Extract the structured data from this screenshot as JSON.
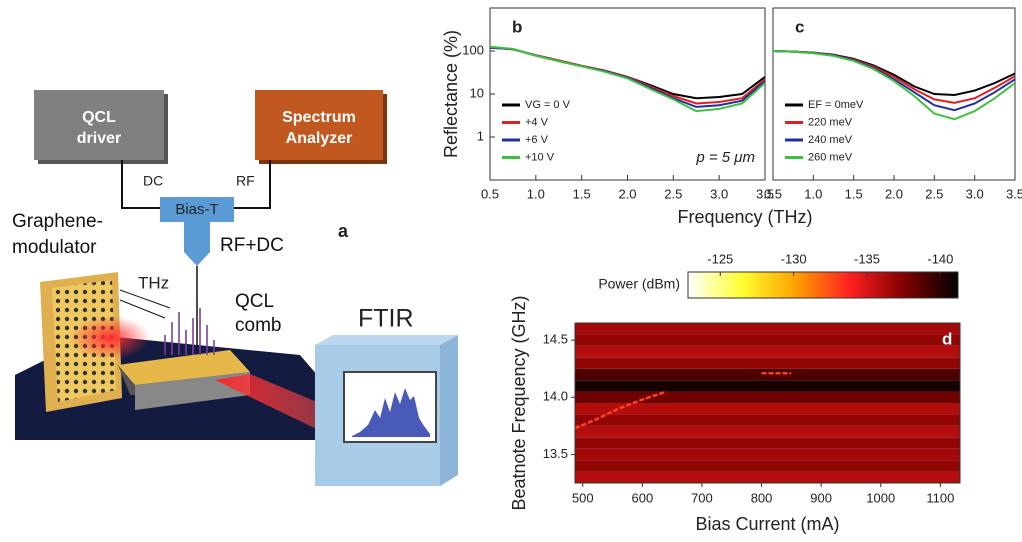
{
  "diagram": {
    "label": "a",
    "qcl_driver": [
      "QCL",
      "driver"
    ],
    "spectrum_analyzer": [
      "Spectrum",
      "Analyzer"
    ],
    "dc": "DC",
    "rf": "RF",
    "bias_t": "Bias-T",
    "rf_dc": "RF+DC",
    "graphene_modulator": [
      "Graphene-",
      "modulator"
    ],
    "thz": "THz",
    "qcl_comb": [
      "QCL",
      "comb"
    ],
    "ftir": "FTIR"
  },
  "chart_data": [
    {
      "type": "line",
      "panel_label": "b",
      "ylabel": "Reflectance (%)",
      "xlabel": "Frequency (THz)",
      "log_y": true,
      "xlim": [
        0.5,
        3.5
      ],
      "ylim": [
        0.1,
        1000
      ],
      "xticks": [
        0.5,
        {
          "value": 1,
          "label": "1.0"
        },
        1.5,
        {
          "value": 2,
          "label": "2.0"
        },
        2.5,
        {
          "value": 3,
          "label": "3.0"
        },
        3.5
      ],
      "yticks": [
        1,
        10,
        100
      ],
      "legend": "lower left",
      "annotation": "p = 5 μm",
      "annotation_color": "#7030a0",
      "x": [
        0.5,
        0.75,
        1.0,
        1.25,
        1.5,
        1.75,
        2.0,
        2.25,
        2.5,
        2.75,
        3.0,
        3.25,
        3.5
      ],
      "series": [
        {
          "name": "VG = 0 V",
          "color": "#000000",
          "values": [
            120,
            110,
            80,
            60,
            45,
            35,
            25,
            16,
            10,
            8,
            8.5,
            10,
            25
          ]
        },
        {
          "name": "+4 V",
          "color": "#e02020",
          "values": [
            120,
            110,
            80,
            60,
            45,
            35,
            25,
            15,
            9,
            6,
            6.5,
            8,
            22
          ]
        },
        {
          "name": "+6 V",
          "color": "#2030a0",
          "values": [
            120,
            110,
            78,
            58,
            44,
            34,
            24,
            14,
            8,
            5,
            5.5,
            7,
            20
          ]
        },
        {
          "name": "+10 V",
          "color": "#40c040",
          "values": [
            125,
            112,
            78,
            58,
            44,
            33,
            23,
            13,
            7.5,
            4,
            4.5,
            6,
            18
          ]
        }
      ]
    },
    {
      "type": "line",
      "panel_label": "c",
      "log_y": true,
      "xlim": [
        0.5,
        3.5
      ],
      "ylim": [
        0.1,
        1000
      ],
      "xticks": [
        0.5,
        {
          "value": 1,
          "label": "1.0"
        },
        1.5,
        {
          "value": 2,
          "label": "2.0"
        },
        2.5,
        {
          "value": 3,
          "label": "3.0"
        },
        3.5
      ],
      "legend": "lower left",
      "x": [
        0.5,
        0.75,
        1.0,
        1.25,
        1.5,
        1.75,
        2.0,
        2.25,
        2.5,
        2.75,
        3.0,
        3.25,
        3.5
      ],
      "series": [
        {
          "name": "EF = 0meV",
          "color": "#000000",
          "values": [
            100,
            97,
            92,
            82,
            66,
            46,
            28,
            15,
            10,
            9.5,
            12,
            18,
            30
          ]
        },
        {
          "name": "220 meV",
          "color": "#e02020",
          "values": [
            100,
            97,
            91,
            80,
            63,
            43,
            25,
            13,
            7.5,
            6.2,
            8,
            14,
            26
          ]
        },
        {
          "name": "240 meV",
          "color": "#2030a0",
          "values": [
            100,
            97,
            90,
            79,
            61,
            40,
            22,
            11,
            5.5,
            4.2,
            6,
            11,
            22
          ]
        },
        {
          "name": "260 meV",
          "color": "#40c040",
          "values": [
            100,
            96,
            89,
            77,
            59,
            38,
            20,
            9,
            3.5,
            2.6,
            4,
            8,
            18
          ]
        }
      ]
    },
    {
      "type": "heatmap",
      "panel_label": "d",
      "ylabel": "Beatnote Frequency (GHz)",
      "xlabel": "Bias Current (mA)",
      "xlim": [
        487,
        1133
      ],
      "ylim": [
        13.25,
        14.65
      ],
      "xticks": [
        500,
        600,
        700,
        800,
        900,
        1000,
        1100
      ],
      "yticks": [
        13.5,
        {
          "value": 14,
          "label": "14.0"
        },
        14.5
      ],
      "y_edges": [
        13.25,
        13.35,
        13.45,
        13.55,
        13.65,
        13.75,
        13.85,
        13.95,
        14.05,
        14.15,
        14.25,
        14.35,
        14.45,
        14.55,
        14.65
      ],
      "z": [
        -136,
        -137,
        -136.5,
        -137,
        -136,
        -137,
        -136,
        -138,
        -140.5,
        -139,
        -137,
        -136,
        -137,
        -136.5
      ],
      "traces": [
        {
          "x": [
            487,
            520,
            560,
            600,
            640
          ],
          "y": [
            13.73,
            13.8,
            13.9,
            13.98,
            14.05
          ],
          "color": "#ff4020"
        },
        {
          "x": [
            800,
            850
          ],
          "y": [
            14.21,
            14.21
          ],
          "color": "#ff4020"
        }
      ],
      "colorbar_label": "Power (dBm)",
      "clim": [
        -122.8,
        -141.2
      ],
      "cticks": [
        -125,
        -130,
        -135,
        -140
      ],
      "colormap": [
        "#ffffff",
        "#ffff30",
        "#ffa000",
        "#ff2020",
        "#800000",
        "#000000"
      ]
    }
  ]
}
